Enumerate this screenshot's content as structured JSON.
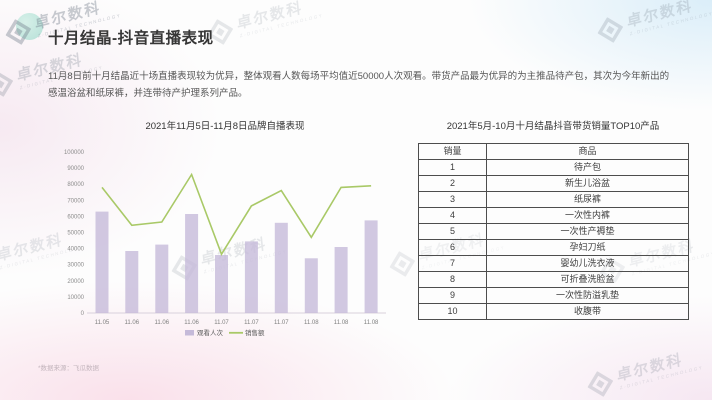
{
  "slide": {
    "title": "十月结晶-抖音直播表现",
    "body": "11月8日前十月结晶近十场直播表现较为优异，整体观看人数每场平均值近50000人次观看。带货产品最为优异的为主推品待产包，其次为今年新出的感温浴盆和纸尿裤，并连带待产护理系列产品。",
    "footnote": "*数据来源：飞瓜数据"
  },
  "watermark": {
    "brand": "卓尔数科",
    "tagline": "Z-DIGITAL TECHNOLOGY"
  },
  "chart_data": {
    "type": "bar+line",
    "title": "2021年11月5日-11月8日品牌自播表现",
    "categories": [
      "11.05",
      "11.06",
      "11.06",
      "11.06",
      "11.07",
      "11.07",
      "11.07",
      "11.08",
      "11.08",
      "11.08"
    ],
    "series": [
      {
        "name": "观看人次",
        "type": "bar",
        "color": "#c5bad9",
        "values": [
          63000,
          38500,
          42500,
          61500,
          36000,
          44500,
          56000,
          34000,
          41000,
          57500
        ]
      },
      {
        "name": "销售额",
        "type": "line",
        "color": "#a9c967",
        "values": [
          78000,
          54500,
          56500,
          86000,
          36500,
          66500,
          76000,
          47000,
          78000,
          79000
        ]
      }
    ],
    "ylim": [
      0,
      100000
    ],
    "ytick_step": 10000,
    "yticks": [
      0,
      10000,
      20000,
      30000,
      40000,
      50000,
      60000,
      70000,
      80000,
      90000,
      100000
    ],
    "legend_position": "bottom",
    "grid": false
  },
  "table": {
    "title": "2021年5月-10月十月结晶抖音带货销量TOP10产品",
    "headers": [
      "销量",
      "商品"
    ],
    "rows": [
      [
        "1",
        "待产包"
      ],
      [
        "2",
        "新生儿浴盆"
      ],
      [
        "3",
        "纸尿裤"
      ],
      [
        "4",
        "一次性内裤"
      ],
      [
        "5",
        "一次性产褥垫"
      ],
      [
        "6",
        "孕妇刀纸"
      ],
      [
        "7",
        "婴幼儿洗衣液"
      ],
      [
        "8",
        "可折叠洗脸盆"
      ],
      [
        "9",
        "一次性防溢乳垫"
      ],
      [
        "10",
        "收腹带"
      ]
    ]
  },
  "colors": {
    "bar": "#c5bad9",
    "line": "#a9c967",
    "accent_teal": "#7ecfbd",
    "watermark_gray": "#6f7a88"
  }
}
